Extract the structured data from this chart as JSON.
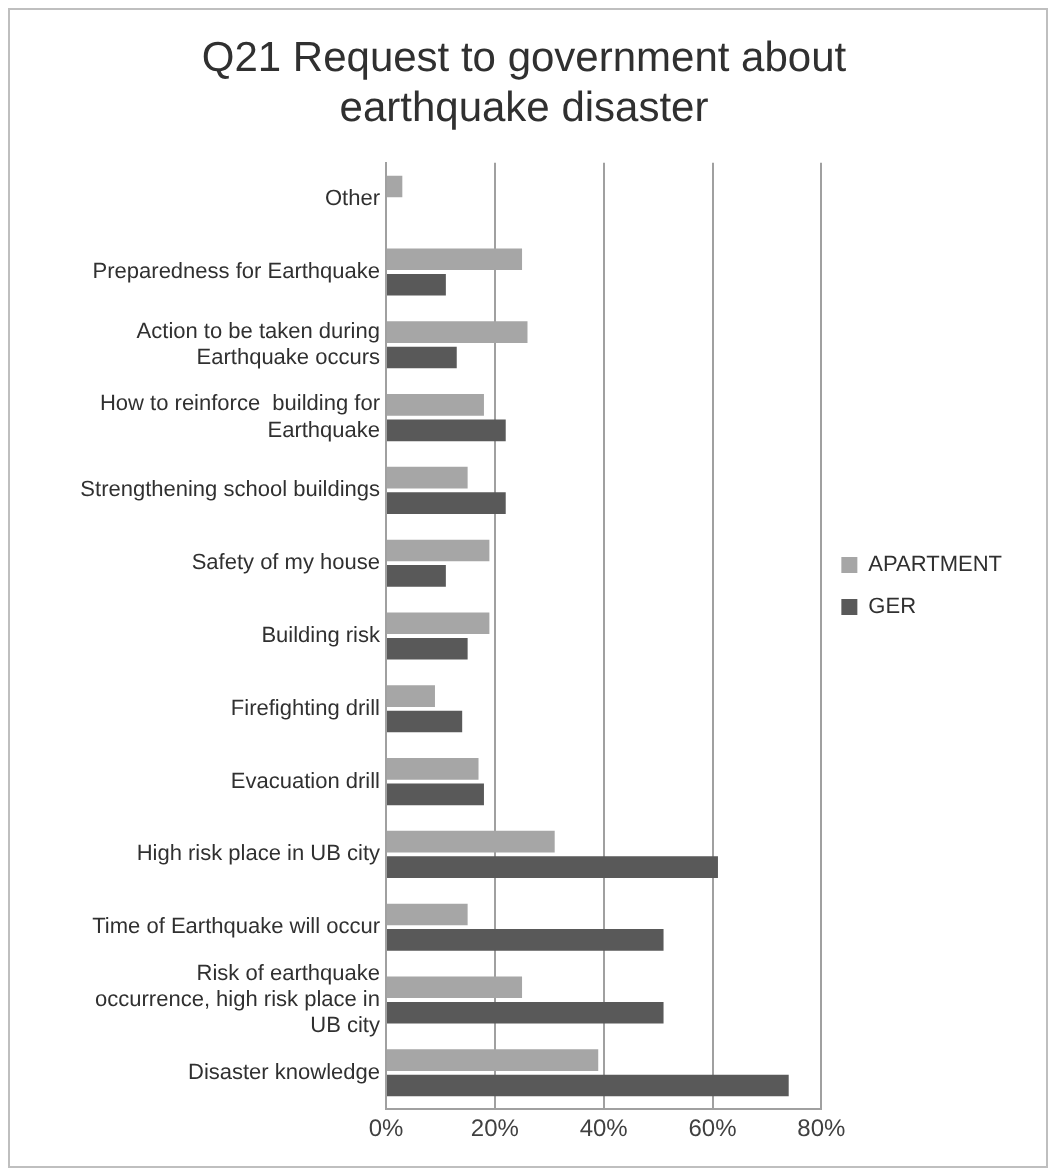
{
  "chart_data": {
    "type": "bar",
    "orientation": "horizontal",
    "title": "Q21 Request to government about earthquake disaster",
    "categories": [
      "Other",
      "Preparedness for Earthquake",
      "Action to be taken during Earthquake occurs",
      "How to reinforce  building for Earthquake",
      "Strengthening school buildings",
      "Safety of my house",
      "Building risk",
      "Firefighting drill",
      "Evacuation drill",
      "High risk place in UB city",
      "Time of Earthquake will occur",
      "Risk of earthquake occurrence, high risk place in UB city",
      "Disaster knowledge"
    ],
    "series": [
      {
        "name": "APARTMENT",
        "color": "#a6a6a6",
        "values": [
          3,
          25,
          26,
          18,
          15,
          19,
          19,
          9,
          17,
          31,
          15,
          25,
          39
        ]
      },
      {
        "name": "GER",
        "color": "#595959",
        "values": [
          0,
          11,
          13,
          22,
          22,
          11,
          15,
          14,
          18,
          61,
          51,
          51,
          74
        ]
      }
    ],
    "xlim": [
      0,
      80
    ],
    "xticks": [
      {
        "value": 0,
        "label": "0%"
      },
      {
        "value": 20,
        "label": "20%"
      },
      {
        "value": 40,
        "label": "40%"
      },
      {
        "value": 60,
        "label": "60%"
      },
      {
        "value": 80,
        "label": "80%"
      }
    ],
    "grid": "x",
    "legend": "right"
  }
}
